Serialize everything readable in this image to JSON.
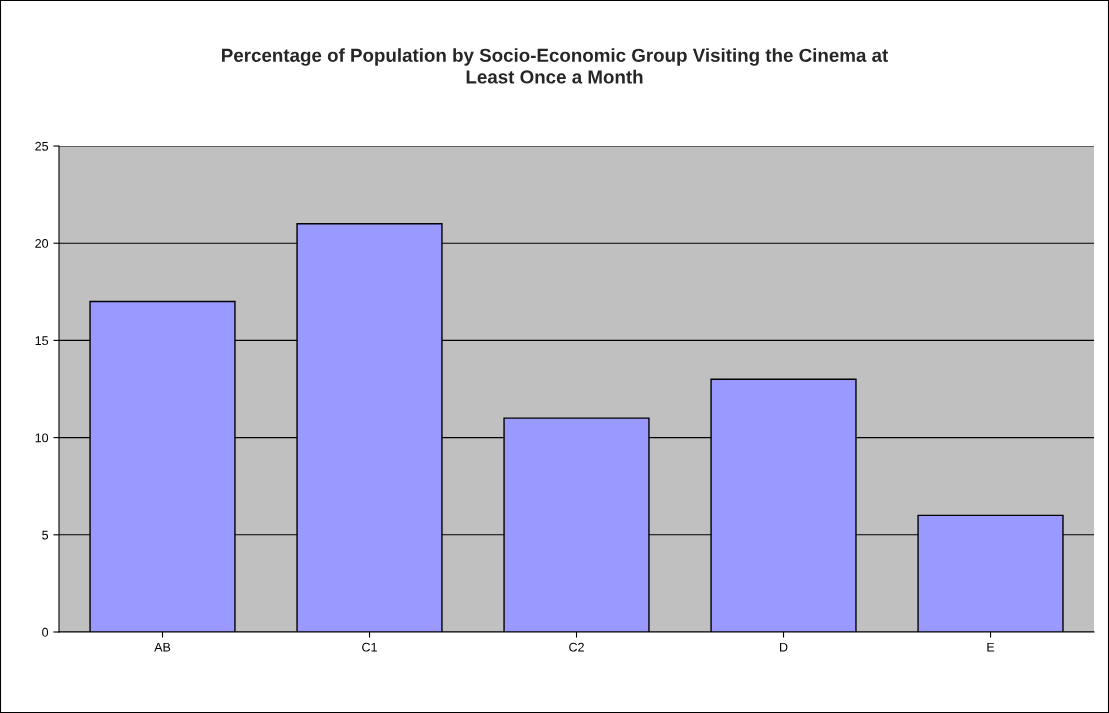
{
  "chart_data": {
    "type": "bar",
    "title": "Percentage of Population by Socio-Economic Group Visiting the Cinema at\nLeast Once a Month",
    "categories": [
      "AB",
      "C1",
      "C2",
      "D",
      "E"
    ],
    "values": [
      17,
      21,
      11,
      13,
      6
    ],
    "color": "#9999ff",
    "ylim": [
      0,
      25
    ],
    "yticks": [
      0,
      5,
      10,
      15,
      20,
      25
    ],
    "grid": "y",
    "legend": false
  }
}
